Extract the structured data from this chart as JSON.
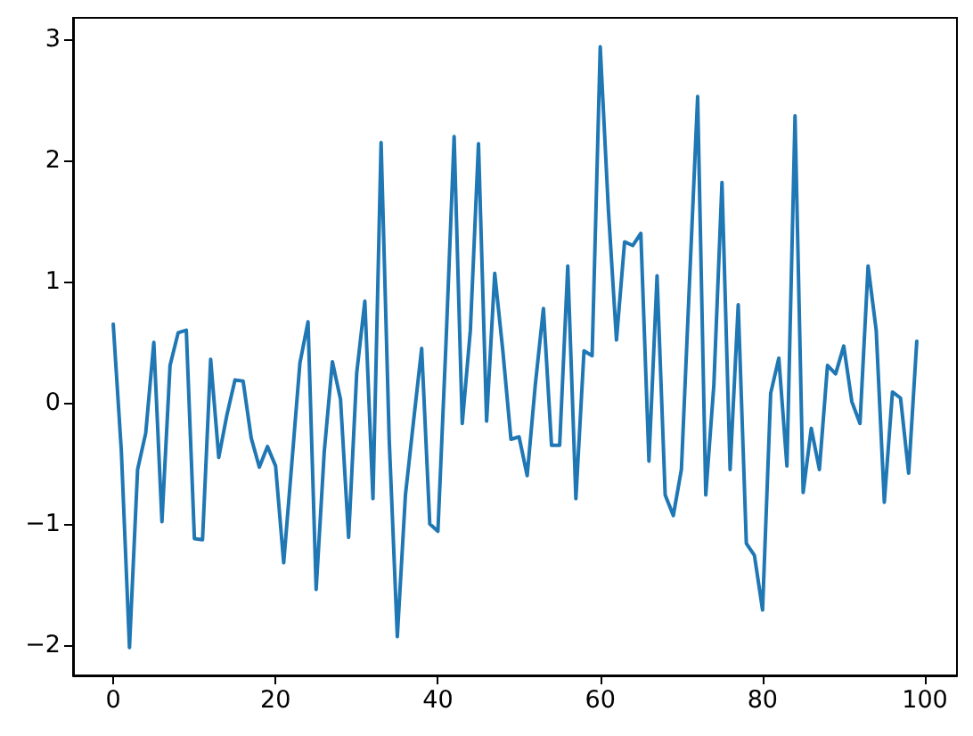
{
  "chart_data": {
    "type": "line",
    "x": [
      0,
      1,
      2,
      3,
      4,
      5,
      6,
      7,
      8,
      9,
      10,
      11,
      12,
      13,
      14,
      15,
      16,
      17,
      18,
      19,
      20,
      21,
      22,
      23,
      24,
      25,
      26,
      27,
      28,
      29,
      30,
      31,
      32,
      33,
      34,
      35,
      36,
      37,
      38,
      39,
      40,
      41,
      42,
      43,
      44,
      45,
      46,
      47,
      48,
      49,
      50,
      51,
      52,
      53,
      54,
      55,
      56,
      57,
      58,
      59,
      60,
      61,
      62,
      63,
      64,
      65,
      66,
      67,
      68,
      69,
      70,
      71,
      72,
      73,
      74,
      75,
      76,
      77,
      78,
      79,
      80,
      81,
      82,
      83,
      84,
      85,
      86,
      87,
      88,
      89,
      90,
      91,
      92,
      93,
      94,
      95,
      96,
      97,
      98,
      99
    ],
    "series": [
      {
        "color": "#1f77b4",
        "values": [
          0.65,
          -0.4,
          -2.02,
          -0.55,
          -0.25,
          0.5,
          -0.98,
          0.31,
          0.58,
          0.6,
          -1.12,
          -1.13,
          0.36,
          -0.45,
          -0.1,
          0.19,
          0.18,
          -0.29,
          -0.53,
          -0.36,
          -0.52,
          -1.32,
          -0.5,
          0.33,
          0.67,
          -1.54,
          -0.4,
          0.34,
          0.03,
          -1.11,
          0.25,
          0.84,
          -0.79,
          2.15,
          -0.3,
          -1.93,
          -0.76,
          -0.15,
          0.45,
          -1.0,
          -1.06,
          0.5,
          2.2,
          -0.17,
          0.6,
          2.14,
          -0.15,
          1.07,
          0.43,
          -0.3,
          -0.28,
          -0.6,
          0.15,
          0.78,
          -0.35,
          -0.35,
          1.13,
          -0.79,
          0.43,
          0.39,
          2.94,
          1.6,
          0.52,
          1.33,
          1.3,
          1.4,
          -0.48,
          1.05,
          -0.76,
          -0.93,
          -0.55,
          1.0,
          2.53,
          -0.76,
          0.15,
          1.82,
          -0.55,
          0.81,
          -1.16,
          -1.26,
          -1.71,
          0.08,
          0.37,
          -0.52,
          2.37,
          -0.74,
          -0.21,
          -0.55,
          0.31,
          0.24,
          0.47,
          0.01,
          -0.17,
          1.13,
          0.6,
          -0.82,
          0.09,
          0.04,
          -0.58,
          0.51
        ]
      }
    ],
    "xlim": [
      -4.95,
      103.95
    ],
    "xticks": [
      0,
      20,
      40,
      60,
      80,
      100
    ],
    "ylim": [
      -2.25,
      3.18
    ],
    "yticks": [
      {
        "value": -2,
        "label": "−2"
      },
      {
        "value": -1,
        "label": "−1"
      },
      0,
      1,
      2,
      3
    ],
    "marker": "none",
    "line_style": "solid"
  }
}
